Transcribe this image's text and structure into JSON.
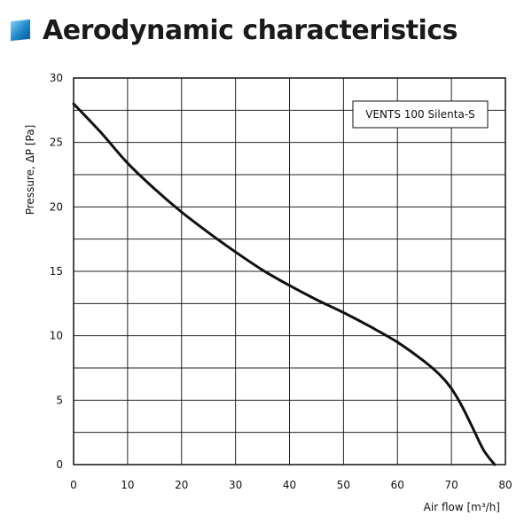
{
  "header": {
    "title": "Aerodynamic characteristics",
    "icon": "blue-square-icon",
    "icon_color": "#1f87c7"
  },
  "chart_data": {
    "type": "line",
    "xlabel": "Air flow [m³/h]",
    "ylabel": "Pressure, ΔP [Pa]",
    "xlim": [
      0,
      80
    ],
    "ylim": [
      0,
      30
    ],
    "xticks": [
      0,
      10,
      20,
      30,
      40,
      50,
      60,
      70,
      80
    ],
    "yticks": [
      0,
      5,
      10,
      15,
      20,
      25,
      30
    ],
    "grid": true,
    "legend_position": "top-right",
    "series": [
      {
        "name": "VENTS 100 Silenta-S",
        "color": "#111111",
        "x": [
          0,
          5,
          10,
          15,
          20,
          25,
          30,
          35,
          40,
          45,
          50,
          55,
          60,
          65,
          68,
          70,
          72,
          74,
          76,
          78
        ],
        "y": [
          28,
          25.8,
          23.4,
          21.4,
          19.6,
          18.0,
          16.5,
          15.1,
          13.9,
          12.8,
          11.8,
          10.7,
          9.5,
          8.0,
          6.9,
          5.9,
          4.5,
          2.8,
          1.1,
          0
        ]
      }
    ]
  }
}
